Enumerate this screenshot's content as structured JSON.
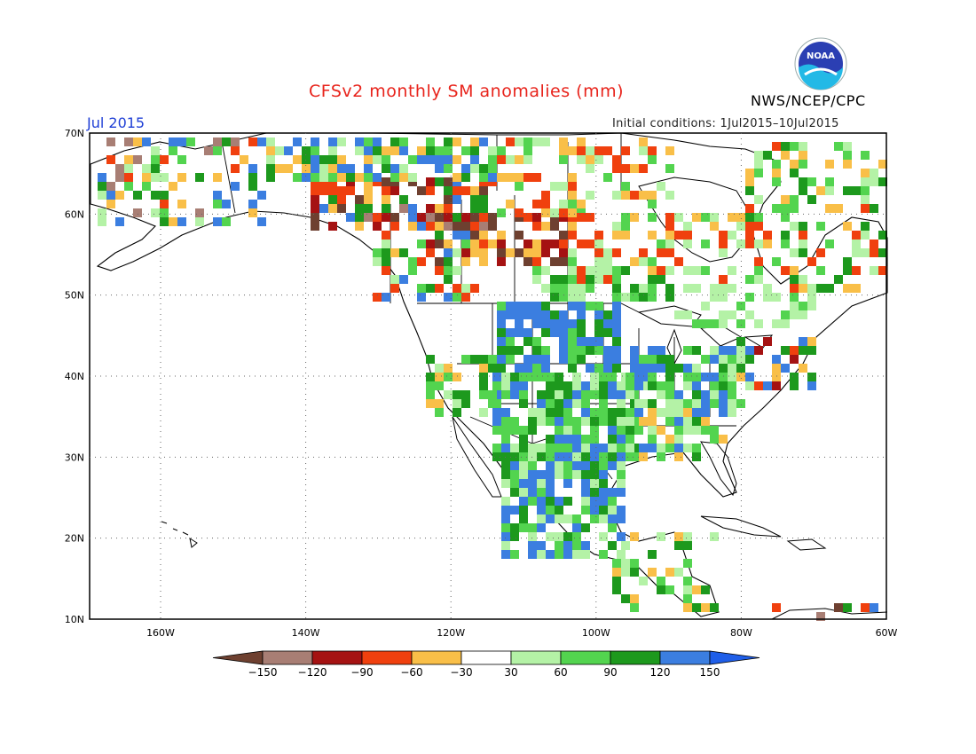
{
  "header": {
    "title": "CFSv2 monthly SM anomalies (mm)",
    "month": "Jul 2015",
    "initial_conditions": "Initial conditions: 1Jul2015–10Jul2015",
    "agency": "NWS/NCEP/CPC",
    "logo_text": "NOAA",
    "logo_icon": "noaa-logo-icon"
  },
  "map": {
    "lat_labels": [
      "70N",
      "60N",
      "50N",
      "40N",
      "30N",
      "20N",
      "10N"
    ],
    "lon_labels": [
      "160W",
      "140W",
      "120W",
      "100W",
      "80W",
      "60W"
    ],
    "grid": "dotted"
  },
  "colorbar": {
    "ticks": [
      "−150",
      "−120",
      "−90",
      "−60",
      "−30",
      "30",
      "60",
      "90",
      "120",
      "150"
    ],
    "colors": [
      "#6e4030",
      "#a87e74",
      "#a51212",
      "#f0400e",
      "#f9bf48",
      "#ffffff",
      "#b4f2a6",
      "#53d44f",
      "#1d991d",
      "#3b7ee0",
      "#1f5ee8"
    ]
  }
}
